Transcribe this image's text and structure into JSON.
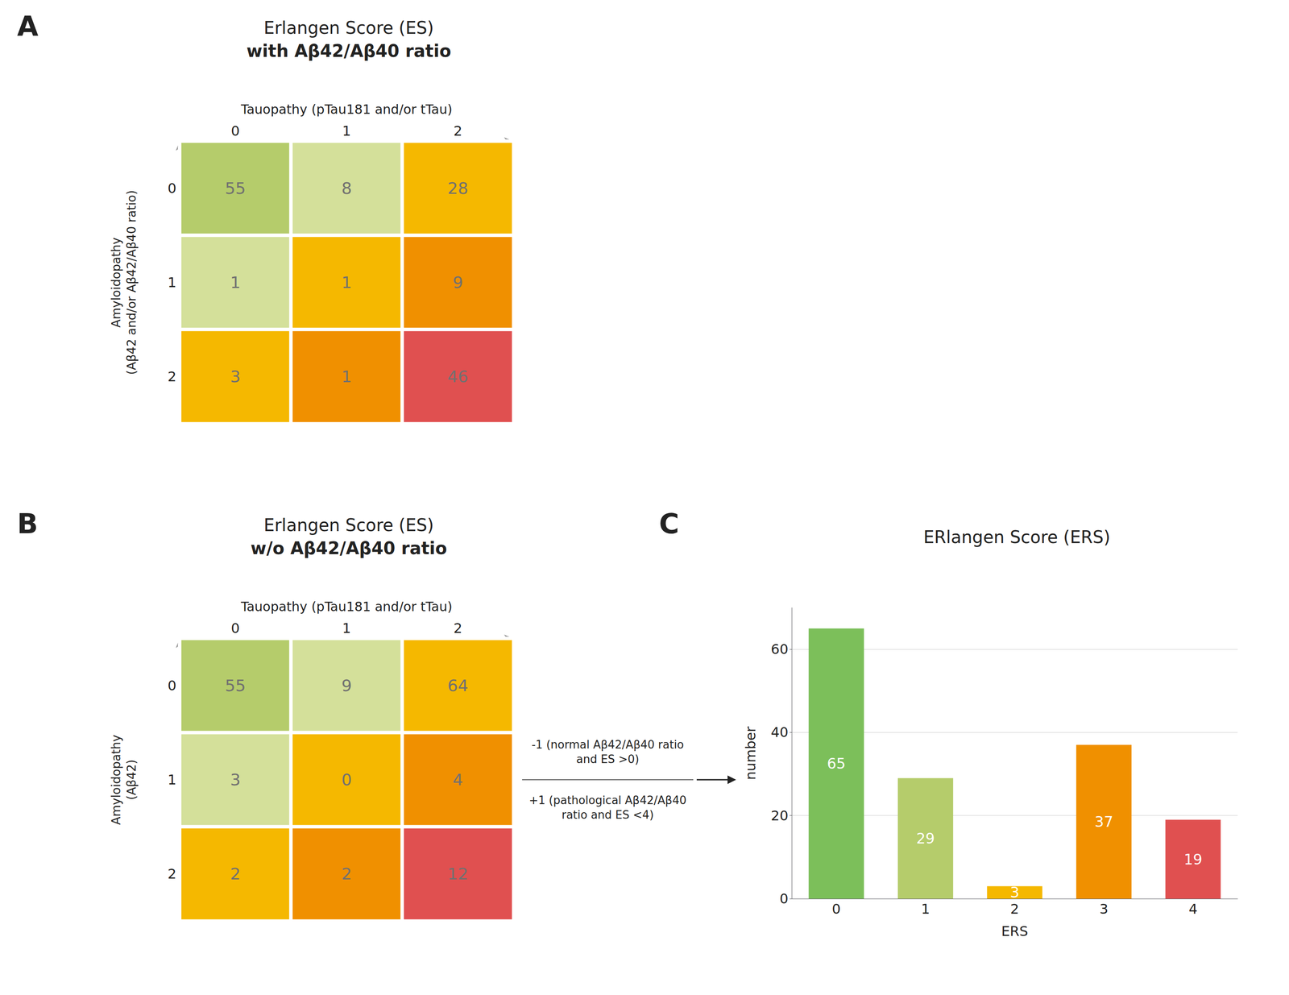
{
  "chart_data": [
    {
      "type": "heatmap",
      "title": "Erlangen Score (ES)",
      "subtitle": "with Aβ42/Aβ40 ratio",
      "xlabel": "Tauopathy (pTau181 and/or tTau)",
      "ylabel": "Amyloidopathy\n(Aβ42 and/or Aβ42/Aβ40 ratio)",
      "x": [
        0,
        1,
        2
      ],
      "y": [
        0,
        1,
        2
      ],
      "values": [
        [
          55,
          8,
          28
        ],
        [
          1,
          1,
          9
        ],
        [
          3,
          1,
          46
        ]
      ],
      "colors": [
        [
          "#b5cc6b",
          "#d4e09a",
          "#f5b800"
        ],
        [
          "#d4e09a",
          "#f5b800",
          "#f09000"
        ],
        [
          "#f5b800",
          "#f09000",
          "#e05050"
        ]
      ],
      "data_labels": true,
      "annotations": [
        "A"
      ]
    },
    {
      "type": "heatmap",
      "title": "Erlangen Score (ES)",
      "subtitle": "w/o Aβ42/Aβ40 ratio",
      "xlabel": "Tauopathy (pTau181 and/or tTau)",
      "ylabel": "Amyloidopathy\n(Aβ42)",
      "x": [
        0,
        1,
        2
      ],
      "y": [
        0,
        1,
        2
      ],
      "values": [
        [
          55,
          9,
          64
        ],
        [
          3,
          0,
          4
        ],
        [
          2,
          2,
          12
        ]
      ],
      "colors": [
        [
          "#b5cc6b",
          "#d4e09a",
          "#f5b800"
        ],
        [
          "#d4e09a",
          "#f5b800",
          "#f09000"
        ],
        [
          "#f5b800",
          "#f09000",
          "#e05050"
        ]
      ],
      "data_labels": true,
      "annotations": [
        "B",
        "-1 (normal Aβ42/Aβ40 ratio\nand ES >0)",
        "+1 (pathological Aβ42/Aβ40\nratio and ES <4)"
      ]
    },
    {
      "type": "bar",
      "title": "ERlangen Score (ERS)",
      "xlabel": "ERS",
      "ylabel": "number",
      "categories": [
        0,
        1,
        2,
        3,
        4
      ],
      "values": [
        65,
        29,
        3,
        37,
        19
      ],
      "colors": [
        "#7cbf5a",
        "#b5cc6b",
        "#f5b800",
        "#f09000",
        "#e05050"
      ],
      "ylim": [
        0,
        70
      ],
      "yticks": [
        0,
        20,
        40,
        60
      ],
      "grid": true,
      "data_labels": true,
      "annotations": [
        "C"
      ]
    }
  ]
}
